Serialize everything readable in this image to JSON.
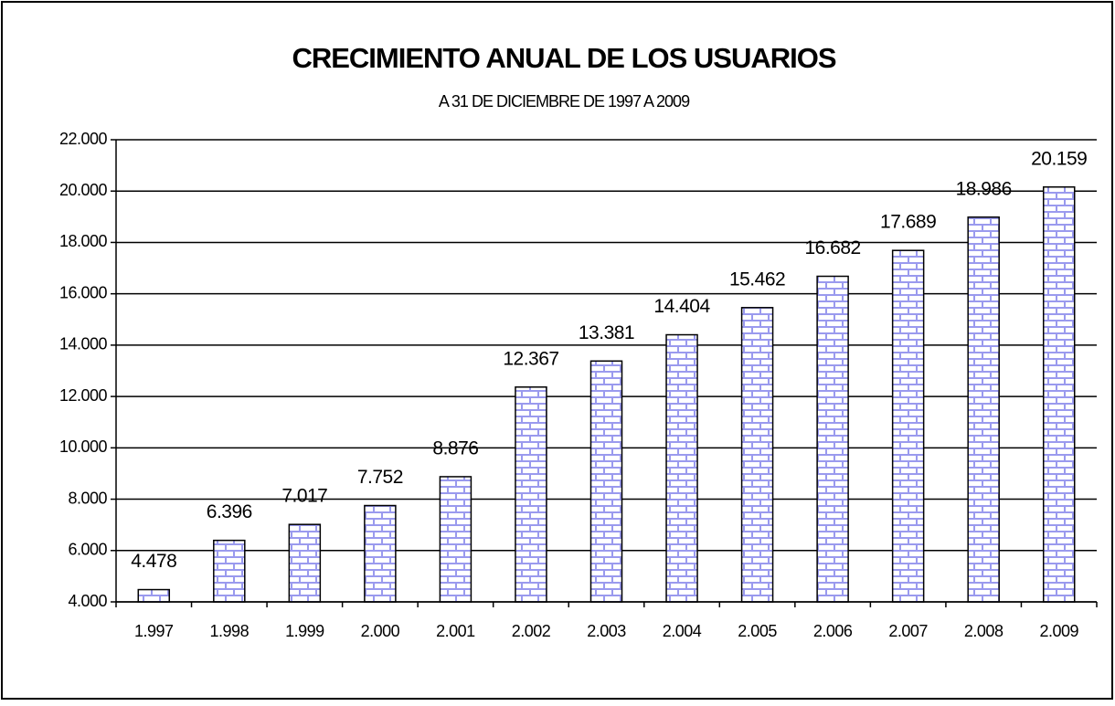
{
  "chart_data": {
    "type": "bar",
    "title": "CRECIMIENTO ANUAL DE LOS USUARIOS",
    "subtitle": "A 31 DE DICIEMBRE DE 1997 A 2009",
    "categories": [
      "1.997",
      "1.998",
      "1.999",
      "2.000",
      "2.001",
      "2.002",
      "2.003",
      "2.004",
      "2.005",
      "2.006",
      "2.007",
      "2.008",
      "2.009"
    ],
    "values": [
      4478,
      6396,
      7017,
      7752,
      8876,
      12367,
      13381,
      14404,
      15462,
      16682,
      17689,
      18986,
      20159
    ],
    "value_labels": [
      "4.478",
      "6.396",
      "7.017",
      "7.752",
      "8.876",
      "12.367",
      "13.381",
      "14.404",
      "15.462",
      "16.682",
      "17.689",
      "18.986",
      "20.159"
    ],
    "color": "#9a9aee",
    "ylim": [
      4000,
      22000
    ],
    "yticks": [
      {
        "value": 4000,
        "label": "4.000"
      },
      {
        "value": 6000,
        "label": "6.000"
      },
      {
        "value": 8000,
        "label": "8.000"
      },
      {
        "value": 10000,
        "label": "10.000"
      },
      {
        "value": 12000,
        "label": "12.000"
      },
      {
        "value": 14000,
        "label": "14.000"
      },
      {
        "value": 16000,
        "label": "16.000"
      },
      {
        "value": 18000,
        "label": "18.000"
      },
      {
        "value": 20000,
        "label": "20.000"
      },
      {
        "value": 22000,
        "label": "22.000"
      }
    ],
    "grid": true
  }
}
